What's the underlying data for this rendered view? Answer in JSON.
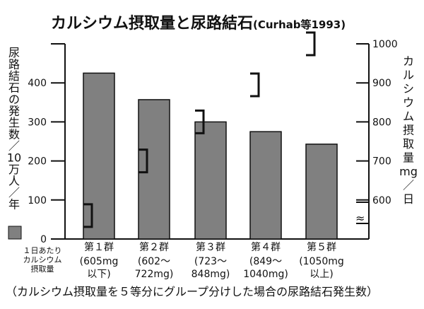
{
  "chart_data": {
    "type": "bar",
    "title": "カルシウム摂取量と尿路結石",
    "title_source": "(Curhab等1993)",
    "categories": [
      "第１群",
      "第２群",
      "第３群",
      "第４群",
      "第５群"
    ],
    "category_ranges": [
      [
        "(605mg",
        "以下)"
      ],
      [
        "(602〜",
        "722mg)"
      ],
      [
        "(723〜",
        "848mg)"
      ],
      [
        "(849〜",
        "1040mg)"
      ],
      [
        "(1050mg",
        "以上)"
      ]
    ],
    "row_label": [
      "１日あたり",
      "カルシウム",
      "摂取量"
    ],
    "series": [
      {
        "name": "尿路結石の発生数",
        "values": [
          425,
          357,
          300,
          275,
          243
        ],
        "color": "#808080"
      },
      {
        "name": "カルシウム摂取量",
        "axis": "right",
        "values": [
          560,
          700,
          800,
          895,
          1000
        ]
      }
    ],
    "left_axis": {
      "label_chars": [
        "尿",
        "路",
        "結",
        "石",
        "の",
        "発",
        "生",
        "数",
        "／",
        "10",
        "万",
        "人",
        "／",
        "年"
      ],
      "ylim": [
        0,
        500
      ],
      "ticks": [
        0,
        100,
        200,
        300,
        400
      ]
    },
    "right_axis": {
      "label_chars": [
        "カ",
        "ル",
        "シ",
        "ウ",
        "ム",
        "摂",
        "取",
        "量",
        "mg",
        "／",
        "日"
      ],
      "ylim": [
        500,
        1000
      ],
      "ticks": [
        600,
        700,
        800,
        900,
        1000
      ],
      "break_symbol": "≈"
    },
    "footnote": "（カルシウム摂取量を５等分にグループ分けした場合の尿路結石発生数）"
  }
}
